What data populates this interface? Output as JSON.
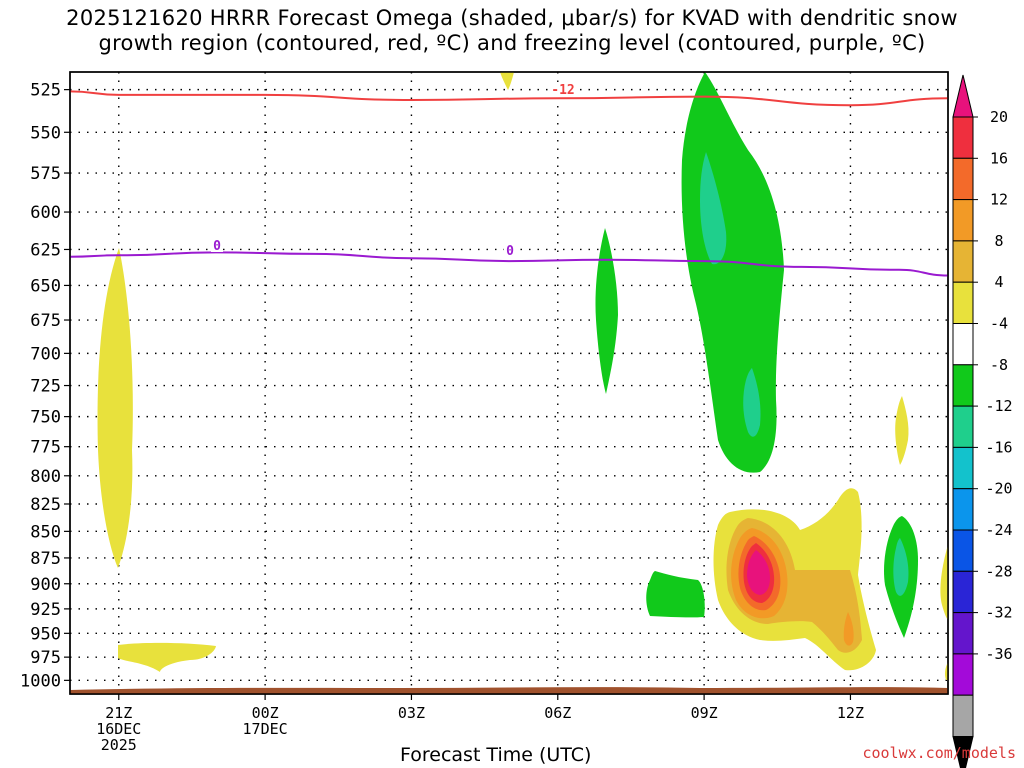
{
  "chart_data": {
    "type": "heatmap",
    "title_line1": "2025121620 HRRR Forecast Omega (shaded, μbar/s) for KVAD with dendritic snow",
    "title_line2": "growth region (contoured, red, ºC) and freezing level (contoured, purple, ºC)",
    "xlabel": "Forecast Time (UTC)",
    "credit": "coolwx.com/models",
    "x_range_hours": [
      -1,
      17
    ],
    "x_ticks": [
      {
        "hour": 0,
        "lines": [
          "21Z",
          "16DEC",
          "2025"
        ]
      },
      {
        "hour": 3,
        "lines": [
          "00Z",
          "17DEC"
        ]
      },
      {
        "hour": 6,
        "lines": [
          "03Z"
        ]
      },
      {
        "hour": 9,
        "lines": [
          "06Z"
        ]
      },
      {
        "hour": 12,
        "lines": [
          "09Z"
        ]
      },
      {
        "hour": 15,
        "lines": [
          "12Z"
        ]
      }
    ],
    "y_ticks": [
      525,
      550,
      575,
      600,
      625,
      650,
      675,
      700,
      725,
      750,
      775,
      800,
      825,
      850,
      875,
      900,
      925,
      950,
      975,
      1000
    ],
    "y_range_hpa": [
      515,
      1015
    ],
    "colorbar": {
      "labels": [
        "20",
        "16",
        "12",
        "8",
        "4",
        "-4",
        "-8",
        "-12",
        "-16",
        "-20",
        "-24",
        "-28",
        "-32",
        "-36"
      ],
      "colors": [
        "#ef2f3e",
        "#f36a2a",
        "#f29a26",
        "#e6b434",
        "#e8e13c",
        "#ffffff",
        "#11c91b",
        "#1fcf8c",
        "#13c2cc",
        "#0b95ec",
        "#0a55e6",
        "#2a25d6",
        "#6415cc",
        "#a30ad9",
        "#a6a6a6"
      ],
      "top_cap_color": "#e8127c",
      "bottom_cap_color": "#000000"
    },
    "contours": {
      "dendritic_snow_label": "-12",
      "dendritic_snow_color": "#f04040",
      "freezing_level_label": "0",
      "freezing_level_color": "#9a1ad0",
      "dendritic_points": [
        [
          -1,
          526
        ],
        [
          0,
          528
        ],
        [
          3,
          528
        ],
        [
          6,
          531
        ],
        [
          9,
          530
        ],
        [
          12,
          529
        ],
        [
          15,
          534
        ],
        [
          17,
          530
        ]
      ],
      "freezing_points": [
        [
          -1,
          630
        ],
        [
          0,
          629
        ],
        [
          2,
          627
        ],
        [
          4,
          628
        ],
        [
          6,
          631
        ],
        [
          8,
          633
        ],
        [
          10,
          632
        ],
        [
          12,
          633
        ],
        [
          14,
          637
        ],
        [
          16,
          639
        ],
        [
          17,
          643
        ]
      ]
    },
    "shading_colors": {
      "ascent_weak": "#11c91b",
      "ascent_moderate": "#1fcf8c",
      "descent_4": "#e8e13c",
      "descent_8": "#e6b434",
      "descent_12": "#f29a26",
      "descent_16": "#f36a2a",
      "descent_20": "#ef2f3e",
      "descent_max": "#e8127c",
      "ground": "#a0522d"
    }
  }
}
